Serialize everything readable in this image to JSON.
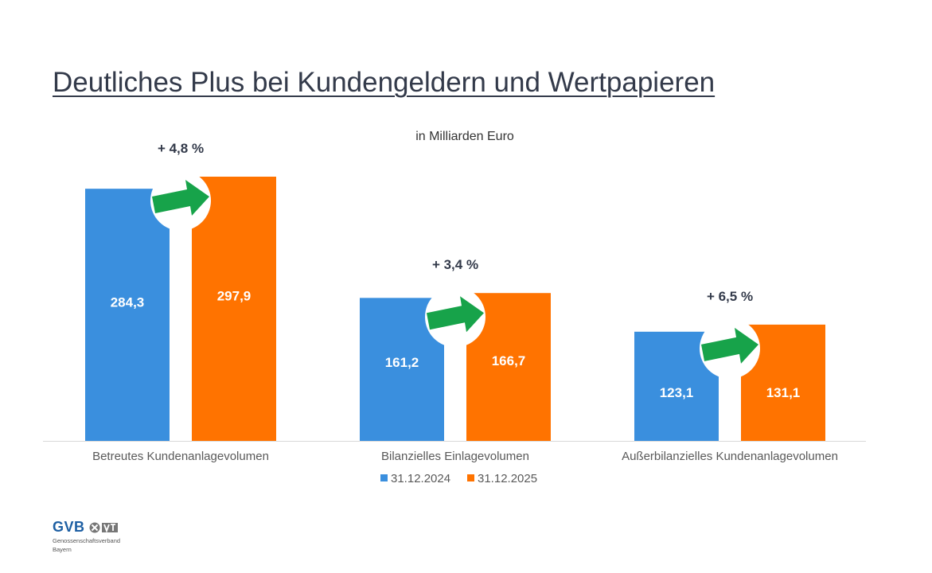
{
  "page": {
    "title": "Deutliches Plus bei Kundengeldern und Wertpapieren"
  },
  "chart_data": {
    "type": "bar",
    "subtitle": "in Milliarden Euro",
    "categories": [
      "Betreutes Kundenanlagevolumen",
      "Bilanzielles Einlagevolumen",
      "Außerbilanzielles Kundenanlagevolumen"
    ],
    "series": [
      {
        "name": "31.12.2024",
        "values": [
          284.3,
          161.2,
          123.1
        ],
        "labels": [
          "284,3",
          "161,2",
          "123,1"
        ],
        "color": "#3a8fde"
      },
      {
        "name": "31.12.2025",
        "values": [
          297.9,
          166.7,
          131.1
        ],
        "labels": [
          "297,9",
          "166,7",
          "131,1"
        ],
        "color": "#ff7300"
      }
    ],
    "changes": [
      "+ 4,8 %",
      "+ 3,4 %",
      "+ 6,5 %"
    ],
    "arrow_color": "#17a34a",
    "legend_position": "bottom",
    "grid": false
  },
  "logo": {
    "name": "GVB",
    "line1": "Genossenschaftsverband",
    "line2": "Bayern"
  }
}
